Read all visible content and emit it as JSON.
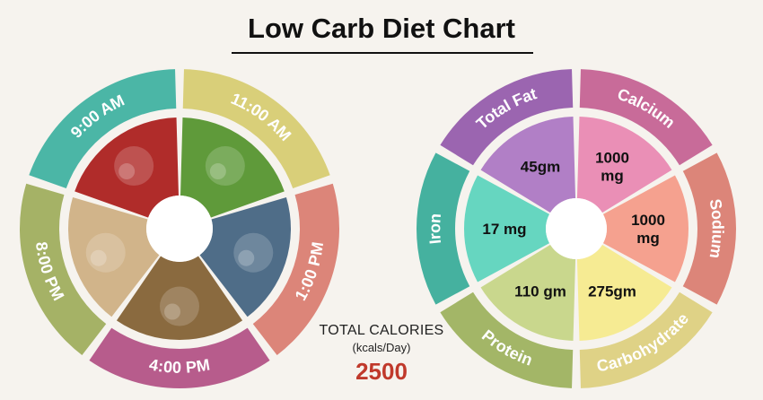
{
  "title": "Low Carb Diet Chart",
  "total_calories": {
    "label": "TOTAL CALORIES",
    "unit": "(kcals/Day)",
    "value": "2500"
  },
  "chart_data": [
    {
      "type": "pie",
      "title": "",
      "segments": [
        {
          "label": "9:00 AM",
          "color": "#4bb6a6",
          "image": "juice-tomato"
        },
        {
          "label": "11:00 AM",
          "color": "#d9cf79",
          "image": "green-peas"
        },
        {
          "label": "1:00 PM",
          "color": "#dc8579",
          "image": "grilled-fish"
        },
        {
          "label": "4:00 PM",
          "color": "#b75c8c",
          "image": "kiwi"
        },
        {
          "label": "8:00 PM",
          "color": "#a5b266",
          "image": "chapati"
        }
      ],
      "image_colors": [
        "#b02c2a",
        "#5f9a3a",
        "#4f6d88",
        "#8a6a3f",
        "#d1b48a"
      ]
    },
    {
      "type": "pie",
      "title": "",
      "slices": [
        {
          "name": "Total Fat",
          "value": "45gm",
          "color": "#9b65b0",
          "inner_color": "#b17fc6"
        },
        {
          "name": "Calcium",
          "value": "1000 mg",
          "color": "#c86b99",
          "inner_color": "#ea8fb6"
        },
        {
          "name": "Sodium",
          "value": "1000 mg",
          "color": "#dc8579",
          "inner_color": "#f5a18f"
        },
        {
          "name": "Carbohydrate",
          "value": "275gm",
          "color": "#dfd286",
          "inner_color": "#f6eb93"
        },
        {
          "name": "Protein",
          "value": "110 gm",
          "color": "#a3b667",
          "inner_color": "#c9d78d"
        },
        {
          "name": "Iron",
          "value": "17 mg",
          "color": "#45b19f",
          "inner_color": "#66d6c0"
        }
      ]
    }
  ]
}
